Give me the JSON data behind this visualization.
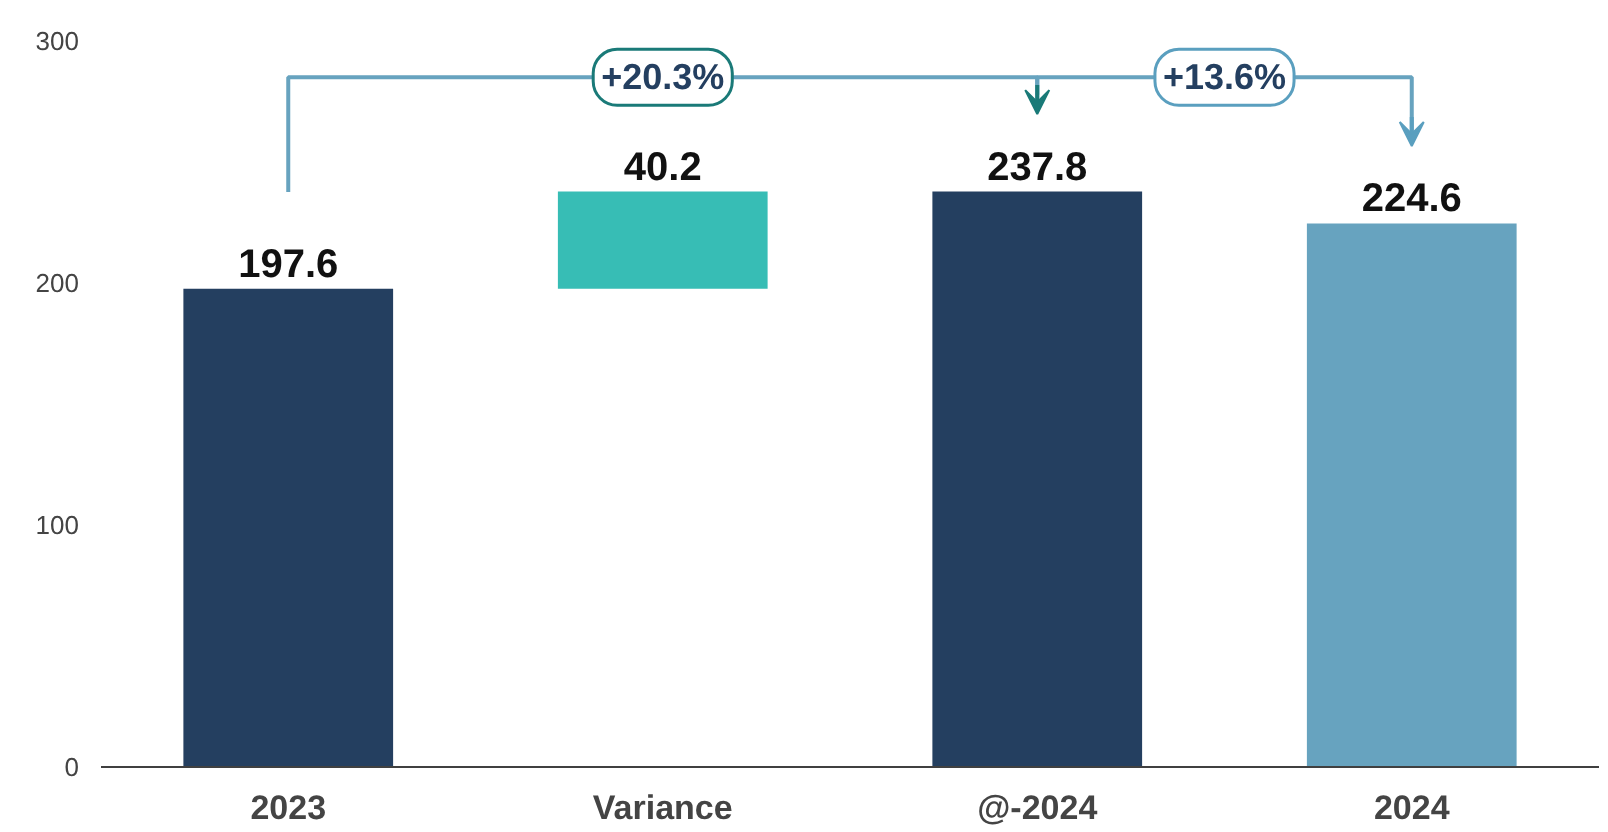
{
  "chart_data": {
    "type": "bar",
    "categories": [
      "2023",
      "Variance",
      "@-2024",
      "2024"
    ],
    "values": [
      197.6,
      40.2,
      237.8,
      224.6
    ],
    "base": [
      0,
      197.6,
      0,
      0
    ],
    "colors": [
      "#243f60",
      "#37bdb5",
      "#243f60",
      "#67a3bf"
    ],
    "ylim": [
      0,
      300
    ],
    "yticks": [
      0,
      100,
      200,
      300
    ],
    "grid": false,
    "data_labels": true,
    "annotations": [
      "+20.3%",
      "+13.6%"
    ]
  }
}
